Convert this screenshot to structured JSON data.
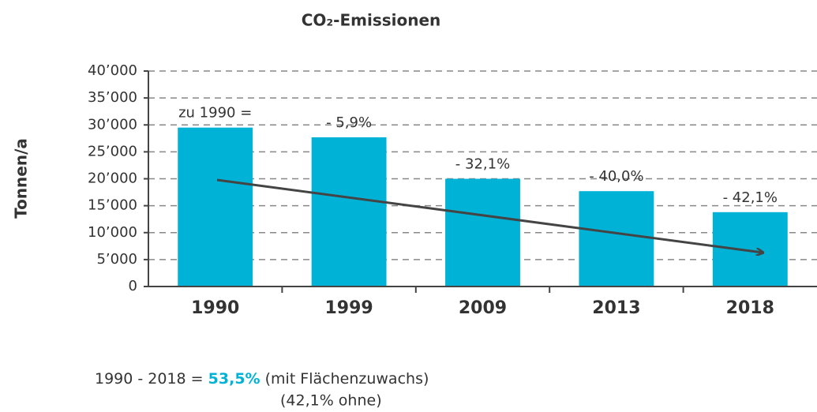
{
  "chart_data": {
    "type": "bar",
    "title": "CO₂-Emissionen",
    "y_label": "Tonnen/a",
    "categories": [
      "1990",
      "1999",
      "2009",
      "2013",
      "2018"
    ],
    "values": [
      29500,
      27700,
      20000,
      17700,
      13800
    ],
    "bar_annotations": [
      "zu 1990 =",
      "- 5,9%",
      "- 32,1%",
      "- 40,0%",
      "- 42,1%"
    ],
    "color": "#00b2d6",
    "ylim": [
      0,
      40000
    ],
    "yticks": [
      0,
      {
        "value": 5000,
        "label": "5’000"
      },
      {
        "value": 10000,
        "label": "10’000"
      },
      {
        "value": 15000,
        "label": "15’000"
      },
      {
        "value": 20000,
        "label": "20’000"
      },
      {
        "value": 25000,
        "label": "25’000"
      },
      {
        "value": 30000,
        "label": "30’000"
      },
      {
        "value": 35000,
        "label": "35’000"
      },
      {
        "value": 40000,
        "label": "40’000"
      }
    ],
    "grid": true,
    "note": {
      "line1_start": "1990 - 2018 = ",
      "line1_highlight": "53,5%",
      "line1_end": " (mit Flächenzuwachs)",
      "line2": "(42,1% ohne)"
    }
  }
}
